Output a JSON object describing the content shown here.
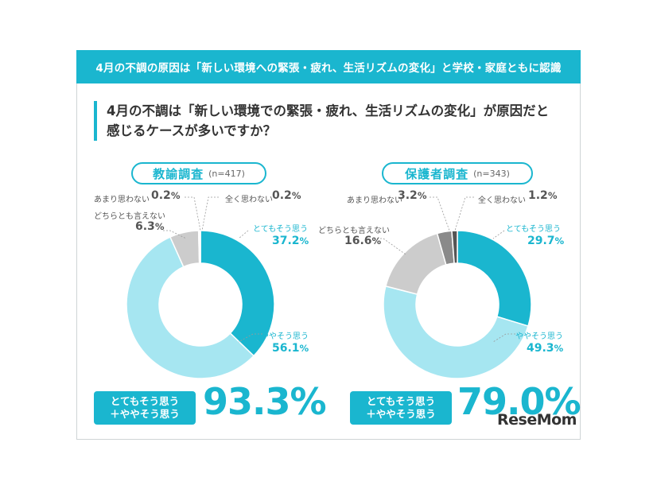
{
  "banner_title": "4月の不調の原因は「新しい環境への緊張・疲れ、生活リズムの変化」と学校・家庭ともに認識",
  "question_line1": "4月の不調は「新しい環境での緊張・疲れ、生活リズムの変化」が原因だと",
  "question_line2": "感じるケースが多いですか？",
  "summary_label_line1": "とてもそう思う",
  "summary_label_line2": "＋ややそう思う",
  "watermark": "ReseMom",
  "colors": {
    "accent": "#1ab6cf",
    "light": "#a6e6f1",
    "gray": "#cccccc",
    "dark_gray": "#8a8a8a",
    "darker_gray": "#555555"
  },
  "chart_data": [
    {
      "type": "pie",
      "title": "教諭調査",
      "n_label": "(n=417)",
      "unit": "%",
      "slices": [
        {
          "label": "とてもそう思う",
          "value": 37.2,
          "color": "#1ab6cf"
        },
        {
          "label": "ややそう思う",
          "value": 56.1,
          "color": "#a6e6f1"
        },
        {
          "label": "どちらとも言えない",
          "value": 6.3,
          "color": "#cccccc"
        },
        {
          "label": "あまり思わない",
          "value": 0.2,
          "color": "#8a8a8a"
        },
        {
          "label": "全く思わない",
          "value": 0.2,
          "color": "#555555"
        }
      ],
      "summary_value": "93.3%"
    },
    {
      "type": "pie",
      "title": "保護者調査",
      "n_label": "(n=343)",
      "unit": "%",
      "slices": [
        {
          "label": "とてもそう思う",
          "value": 29.7,
          "color": "#1ab6cf"
        },
        {
          "label": "ややそう思う",
          "value": 49.3,
          "color": "#a6e6f1"
        },
        {
          "label": "どちらとも言えない",
          "value": 16.6,
          "color": "#cccccc"
        },
        {
          "label": "あまり思わない",
          "value": 3.2,
          "color": "#8a8a8a"
        },
        {
          "label": "全く思わない",
          "value": 1.2,
          "color": "#555555"
        }
      ],
      "summary_value": "79.0%"
    }
  ]
}
